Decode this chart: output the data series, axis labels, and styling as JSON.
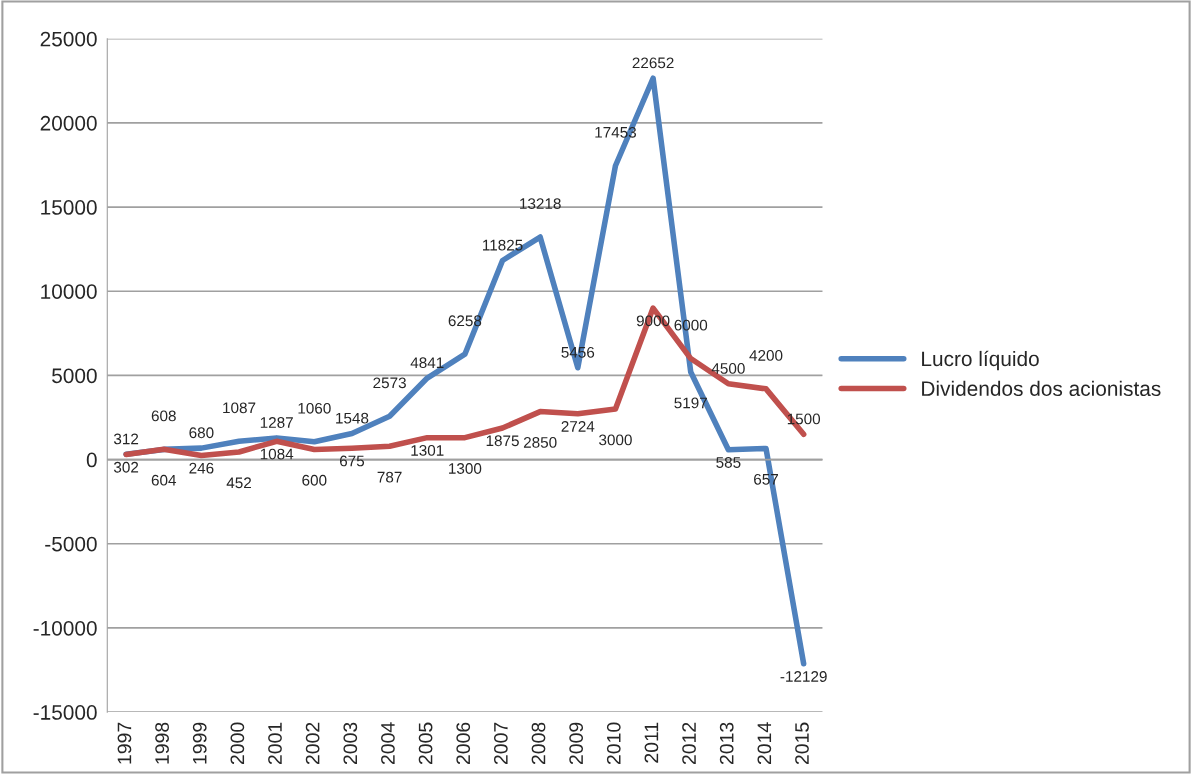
{
  "chart_data": {
    "type": "line",
    "categories": [
      "1997",
      "1998",
      "1999",
      "2000",
      "2001",
      "2002",
      "2003",
      "2004",
      "2005",
      "2006",
      "2007",
      "2008",
      "2009",
      "2010",
      "2011",
      "2012",
      "2013",
      "2014",
      "2015"
    ],
    "series": [
      {
        "name": "Lucro líquido",
        "color": "#4f81bd",
        "values": [
          312,
          604,
          680,
          1087,
          1287,
          1060,
          1548,
          2573,
          4841,
          6258,
          11825,
          13218,
          5456,
          17453,
          22652,
          5197,
          585,
          657,
          -12129
        ]
      },
      {
        "name": "Dividendos dos acionistas",
        "color": "#c0504d",
        "values": [
          302,
          608,
          246,
          452,
          1084,
          600,
          675,
          787,
          1301,
          1300,
          1875,
          2850,
          2724,
          3000,
          9000,
          6000,
          4500,
          4200,
          1500
        ]
      }
    ],
    "ylim": [
      -15000,
      25000
    ],
    "yticks": [
      -15000,
      -10000,
      -5000,
      0,
      5000,
      10000,
      15000,
      20000,
      25000
    ],
    "grid": "y",
    "legend": "right",
    "data_labels": true,
    "marker": "none",
    "line_style": "solid"
  }
}
